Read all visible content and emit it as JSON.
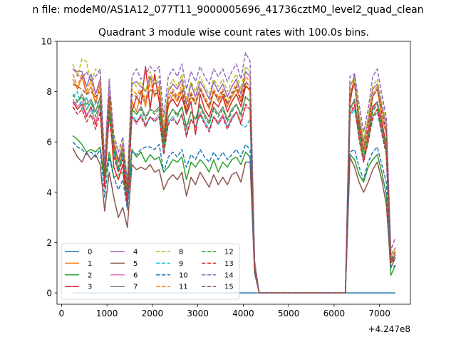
{
  "suptitle": "n file: modeM0/AS1A12_077T11_9000005696_41736cztM0_level2_quad_clean",
  "chart_data": {
    "type": "line",
    "title": "Quadrant 3 module wise count rates with 100.0s bins.",
    "xlabel": "",
    "ylabel": "",
    "offset_text": "+4.247e8",
    "xlim": [
      -100,
      7680
    ],
    "ylim": [
      -0.45,
      10
    ],
    "xticks": [
      0,
      1000,
      2000,
      3000,
      4000,
      5000,
      6000,
      7000
    ],
    "yticks": [
      0,
      2,
      4,
      6,
      8,
      10
    ],
    "grid": false,
    "legend": {
      "location": "lower-left",
      "columns": 4
    },
    "x": [
      250,
      350,
      450,
      550,
      650,
      750,
      850,
      950,
      1050,
      1150,
      1250,
      1350,
      1450,
      1550,
      1650,
      1750,
      1850,
      1950,
      2050,
      2150,
      2250,
      2350,
      2450,
      2550,
      2650,
      2750,
      2850,
      2950,
      3050,
      3150,
      3250,
      3350,
      3450,
      3550,
      3650,
      3750,
      3850,
      3950,
      4050,
      4150,
      4250,
      4350,
      4450,
      4550,
      4650,
      4750,
      4850,
      4950,
      5050,
      5150,
      5250,
      5350,
      5450,
      5550,
      5650,
      5750,
      5850,
      5950,
      6050,
      6150,
      6250,
      6350,
      6450,
      6550,
      6650,
      6750,
      6850,
      6950,
      7050,
      7150,
      7250,
      7350
    ],
    "series": [
      {
        "name": "0",
        "color": "#1f77b4",
        "dash": false,
        "values": [
          0,
          0,
          0,
          0,
          0,
          0,
          0,
          0,
          0,
          0,
          0,
          0,
          0,
          0,
          0,
          0,
          0,
          0,
          0,
          0,
          0,
          0,
          0,
          0,
          0,
          0,
          0,
          0,
          0,
          0,
          0,
          0,
          0,
          0,
          0,
          0,
          0,
          0,
          0,
          0,
          0,
          0,
          0,
          0,
          0,
          0,
          0,
          0,
          0,
          0,
          0,
          0,
          0,
          0,
          0,
          0,
          0,
          0,
          0,
          0,
          0,
          0,
          0,
          0,
          0,
          0,
          0,
          0,
          0,
          0,
          0,
          0
        ]
      },
      {
        "name": "1",
        "color": "#ff7f0e",
        "dash": false,
        "values": [
          8.5,
          8.1,
          8.6,
          7.9,
          8.2,
          7.5,
          8.3,
          4.6,
          7.2,
          5.8,
          4.9,
          5.6,
          3.9,
          7.6,
          7.2,
          8.0,
          7.4,
          8.6,
          7.8,
          8.1,
          6.2,
          7.4,
          7.9,
          7.6,
          8.0,
          7.2,
          7.8,
          7.5,
          8.1,
          7.7,
          7.3,
          8.0,
          7.6,
          7.9,
          7.4,
          7.8,
          8.1,
          7.6,
          8.3,
          8.0,
          1.1,
          0,
          0,
          0,
          0,
          0,
          0,
          0,
          0,
          0,
          0,
          0,
          0,
          0,
          0,
          0,
          0,
          0,
          0,
          0,
          0,
          7.8,
          8.3,
          6.9,
          5.6,
          6.5,
          7.8,
          8.1,
          7.0,
          6.3,
          1.4,
          1.6
        ]
      },
      {
        "name": "2",
        "color": "#2ca02c",
        "dash": false,
        "values": [
          6.25,
          6.1,
          5.9,
          5.6,
          5.7,
          5.6,
          5.8,
          4.4,
          5.6,
          4.6,
          4.7,
          4.8,
          3.5,
          5.7,
          5.4,
          5.6,
          5.2,
          5.5,
          5.3,
          5.4,
          4.8,
          5.0,
          5.3,
          5.2,
          5.4,
          4.5,
          5.2,
          5.0,
          5.3,
          5.1,
          4.8,
          5.3,
          4.8,
          5.2,
          5.0,
          5.3,
          5.4,
          5.1,
          5.6,
          5.4,
          0.9,
          0,
          0,
          0,
          0,
          0,
          0,
          0,
          0,
          0,
          0,
          0,
          0,
          0,
          0,
          0,
          0,
          0,
          0,
          0,
          0,
          5.5,
          5.3,
          4.7,
          4.4,
          5.0,
          5.3,
          5.5,
          4.8,
          3.9,
          0.7,
          1.1
        ]
      },
      {
        "name": "3",
        "color": "#d62728",
        "dash": false,
        "values": [
          7.6,
          7.3,
          7.5,
          7.0,
          7.4,
          6.7,
          7.5,
          4.2,
          7.6,
          5.0,
          4.5,
          5.1,
          3.4,
          7.2,
          7.8,
          7.5,
          9.0,
          7.3,
          8.7,
          7.6,
          5.9,
          7.5,
          7.7,
          7.4,
          7.8,
          7.1,
          7.6,
          6.3,
          7.9,
          7.3,
          7.0,
          7.6,
          7.4,
          7.8,
          7.2,
          7.6,
          7.9,
          7.4,
          8.2,
          8.1,
          1.0,
          0,
          0,
          0,
          0,
          0,
          0,
          0,
          0,
          0,
          0,
          0,
          0,
          0,
          0,
          0,
          0,
          0,
          0,
          0,
          0,
          7.5,
          8.7,
          6.6,
          5.3,
          6.3,
          7.4,
          7.6,
          6.8,
          5.9,
          1.3,
          1.5
        ]
      },
      {
        "name": "4",
        "color": "#9467bd",
        "dash": false,
        "values": [
          8.9,
          8.8,
          8.8,
          8.2,
          8.7,
          7.9,
          8.5,
          5.0,
          8.3,
          6.0,
          5.3,
          5.9,
          4.1,
          8.3,
          8.4,
          8.2,
          8.0,
          8.6,
          8.3,
          8.4,
          6.4,
          8.0,
          8.3,
          8.1,
          8.5,
          7.5,
          8.3,
          7.8,
          8.4,
          8.1,
          7.7,
          8.4,
          8.0,
          8.3,
          7.8,
          8.2,
          8.5,
          7.9,
          8.8,
          8.6,
          1.2,
          0,
          0,
          0,
          0,
          0,
          0,
          0,
          0,
          0,
          0,
          0,
          0,
          0,
          0,
          0,
          0,
          0,
          0,
          0,
          0,
          8.2,
          8.6,
          7.0,
          6.0,
          6.9,
          8.1,
          8.3,
          7.4,
          6.7,
          1.5,
          1.8
        ]
      },
      {
        "name": "5",
        "color": "#8c564b",
        "dash": false,
        "values": [
          5.75,
          5.4,
          5.2,
          5.6,
          5.3,
          5.5,
          5.1,
          3.25,
          4.8,
          3.8,
          3.0,
          3.4,
          2.6,
          5.1,
          4.9,
          5.0,
          4.9,
          5.1,
          4.8,
          4.9,
          4.1,
          4.5,
          4.7,
          4.5,
          4.8,
          3.85,
          4.6,
          4.3,
          4.8,
          4.5,
          4.2,
          4.7,
          4.3,
          4.6,
          4.3,
          4.7,
          4.8,
          4.4,
          5.2,
          5.2,
          0.8,
          0,
          0,
          0,
          0,
          0,
          0,
          0,
          0,
          0,
          0,
          0,
          0,
          0,
          0,
          0,
          0,
          0,
          0,
          0,
          0,
          5.4,
          5.0,
          4.4,
          4.0,
          4.4,
          4.9,
          5.2,
          4.5,
          3.5,
          1.0,
          1.4
        ]
      },
      {
        "name": "6",
        "color": "#e377c2",
        "dash": false,
        "values": [
          7.7,
          7.4,
          7.6,
          7.1,
          7.3,
          6.8,
          7.4,
          4.5,
          7.1,
          5.5,
          4.9,
          5.4,
          3.8,
          7.0,
          6.7,
          7.1,
          6.7,
          7.0,
          6.9,
          7.1,
          5.6,
          6.8,
          7.0,
          6.7,
          7.1,
          6.3,
          6.9,
          6.6,
          7.2,
          6.8,
          6.5,
          7.0,
          6.8,
          7.1,
          6.6,
          7.0,
          7.2,
          6.8,
          7.4,
          7.3,
          1.0,
          0,
          0,
          0,
          0,
          0,
          0,
          0,
          0,
          0,
          0,
          0,
          0,
          0,
          0,
          0,
          0,
          0,
          0,
          0,
          0,
          7.1,
          7.4,
          6.2,
          5.2,
          6.0,
          7.0,
          7.3,
          6.4,
          5.6,
          1.2,
          1.5
        ]
      },
      {
        "name": "7",
        "color": "#7f7f7f",
        "dash": false,
        "values": [
          7.5,
          7.6,
          7.9,
          7.5,
          7.7,
          7.2,
          7.8,
          4.4,
          7.5,
          5.6,
          4.8,
          5.5,
          3.9,
          7.3,
          7.1,
          7.4,
          7.0,
          7.3,
          7.2,
          7.4,
          5.7,
          7.0,
          7.3,
          7.1,
          7.4,
          6.6,
          7.2,
          6.9,
          7.5,
          7.1,
          6.8,
          7.4,
          7.1,
          7.4,
          6.9,
          7.3,
          7.5,
          7.1,
          7.8,
          7.6,
          1.0,
          0,
          0,
          0,
          0,
          0,
          0,
          0,
          0,
          0,
          0,
          0,
          0,
          0,
          0,
          0,
          0,
          0,
          0,
          0,
          0,
          7.3,
          7.7,
          6.4,
          5.4,
          6.2,
          7.3,
          7.6,
          6.6,
          5.7,
          1.2,
          1.5
        ]
      },
      {
        "name": "8",
        "color": "#bcbd22",
        "dash": true,
        "values": [
          9.1,
          8.6,
          9.3,
          9.2,
          8.3,
          8.9,
          8.7,
          5.1,
          8.3,
          6.1,
          5.6,
          6.0,
          4.4,
          8.4,
          8.2,
          8.4,
          8.0,
          8.8,
          8.3,
          8.6,
          6.6,
          8.1,
          8.5,
          8.2,
          8.7,
          7.7,
          8.4,
          8.0,
          8.6,
          8.2,
          7.9,
          8.5,
          8.2,
          8.5,
          8.0,
          8.4,
          8.7,
          8.1,
          9.0,
          8.8,
          1.2,
          0,
          0,
          0,
          0,
          0,
          0,
          0,
          0,
          0,
          0,
          0,
          0,
          0,
          0,
          0,
          0,
          0,
          0,
          0,
          0,
          8.3,
          8.5,
          7.2,
          6.1,
          7.0,
          8.2,
          8.5,
          7.6,
          6.8,
          1.5,
          1.8
        ]
      },
      {
        "name": "9",
        "color": "#17becf",
        "dash": true,
        "values": [
          7.8,
          8.0,
          7.3,
          7.8,
          7.0,
          7.7,
          7.3,
          4.7,
          7.1,
          5.6,
          4.9,
          5.4,
          3.8,
          7.1,
          6.8,
          7.1,
          6.6,
          7.0,
          6.8,
          7.0,
          5.6,
          6.8,
          7.0,
          6.7,
          7.1,
          6.3,
          6.9,
          6.6,
          7.1,
          6.8,
          6.5,
          7.0,
          6.7,
          7.0,
          6.6,
          6.9,
          7.2,
          6.7,
          6.6,
          6.9,
          1.0,
          0,
          0,
          0,
          0,
          0,
          0,
          0,
          0,
          0,
          0,
          0,
          0,
          0,
          0,
          0,
          0,
          0,
          0,
          0,
          0,
          7.0,
          7.3,
          6.2,
          5.3,
          6.0,
          6.9,
          7.2,
          6.3,
          5.5,
          1.2,
          1.4
        ]
      },
      {
        "name": "10",
        "color": "#1f77b4",
        "dash": true,
        "values": [
          6.0,
          5.8,
          5.7,
          5.5,
          5.6,
          5.4,
          5.7,
          3.8,
          5.4,
          4.6,
          4.1,
          4.5,
          3.3,
          5.6,
          5.5,
          5.7,
          5.8,
          5.8,
          5.7,
          5.9,
          4.8,
          5.4,
          5.6,
          5.4,
          5.7,
          5.0,
          5.5,
          5.3,
          5.7,
          5.4,
          5.2,
          5.6,
          5.3,
          5.6,
          5.3,
          5.5,
          5.7,
          5.4,
          5.9,
          5.7,
          0.9,
          0,
          0,
          0,
          0,
          0,
          0,
          0,
          0,
          0,
          0,
          0,
          0,
          0,
          0,
          0,
          0,
          0,
          0,
          0,
          0,
          5.6,
          5.7,
          5.0,
          4.5,
          5.2,
          5.6,
          5.8,
          5.1,
          4.4,
          1.0,
          1.1
        ]
      },
      {
        "name": "11",
        "color": "#ff7f0e",
        "dash": true,
        "values": [
          8.7,
          8.2,
          8.7,
          8.0,
          8.5,
          7.6,
          8.4,
          4.8,
          8.0,
          5.9,
          5.2,
          5.8,
          4.0,
          8.1,
          7.9,
          8.1,
          7.7,
          8.3,
          8.0,
          8.2,
          6.3,
          7.8,
          8.1,
          7.8,
          8.3,
          7.3,
          8.0,
          7.6,
          8.2,
          7.8,
          7.5,
          8.1,
          7.8,
          8.1,
          7.6,
          8.0,
          8.3,
          7.7,
          8.6,
          8.4,
          1.1,
          0,
          0,
          0,
          0,
          0,
          0,
          0,
          0,
          0,
          0,
          0,
          0,
          0,
          0,
          0,
          0,
          0,
          0,
          0,
          0,
          8.0,
          8.4,
          6.9,
          5.8,
          6.7,
          7.9,
          8.2,
          7.3,
          6.5,
          1.4,
          1.7
        ]
      },
      {
        "name": "12",
        "color": "#2ca02c",
        "dash": true,
        "values": [
          7.9,
          7.6,
          7.8,
          7.3,
          7.6,
          7.0,
          7.6,
          4.6,
          7.3,
          5.7,
          5.0,
          5.6,
          3.9,
          7.3,
          7.1,
          7.3,
          6.9,
          7.3,
          7.1,
          7.3,
          5.8,
          7.0,
          7.3,
          7.0,
          7.4,
          6.5,
          7.2,
          6.9,
          7.4,
          7.0,
          6.7,
          7.3,
          7.0,
          7.3,
          6.8,
          7.2,
          7.5,
          7.0,
          7.8,
          7.6,
          1.0,
          0,
          0,
          0,
          0,
          0,
          0,
          0,
          0,
          0,
          0,
          0,
          0,
          0,
          0,
          0,
          0,
          0,
          0,
          0,
          0,
          7.3,
          7.6,
          6.4,
          5.4,
          6.2,
          7.2,
          7.5,
          6.6,
          5.8,
          1.2,
          1.5
        ]
      },
      {
        "name": "13",
        "color": "#d62728",
        "dash": true,
        "values": [
          7.4,
          7.1,
          7.3,
          6.8,
          7.1,
          6.5,
          7.2,
          4.4,
          7.0,
          5.4,
          4.8,
          5.3,
          3.7,
          7.0,
          6.8,
          7.0,
          6.6,
          7.0,
          6.8,
          7.0,
          5.5,
          6.7,
          6.9,
          6.7,
          7.1,
          6.2,
          6.9,
          6.6,
          7.1,
          6.7,
          6.4,
          7.0,
          6.7,
          7.0,
          6.5,
          6.9,
          7.2,
          6.7,
          7.5,
          7.3,
          1.0,
          0,
          0,
          0,
          0,
          0,
          0,
          0,
          0,
          0,
          0,
          0,
          0,
          0,
          0,
          0,
          0,
          0,
          0,
          0,
          0,
          7.1,
          7.5,
          6.1,
          5.2,
          6.0,
          7.0,
          7.3,
          6.4,
          5.5,
          1.2,
          1.4
        ]
      },
      {
        "name": "14",
        "color": "#9467bd",
        "dash": true,
        "values": [
          8.9,
          8.7,
          8.5,
          8.8,
          8.4,
          8.6,
          8.9,
          5.2,
          8.5,
          6.3,
          5.6,
          6.2,
          4.4,
          8.6,
          8.9,
          8.5,
          8.7,
          9.0,
          8.8,
          9.0,
          7.0,
          8.6,
          8.9,
          8.6,
          9.1,
          8.1,
          8.8,
          8.4,
          9.0,
          8.6,
          8.3,
          8.9,
          8.6,
          8.9,
          8.4,
          8.8,
          9.1,
          8.5,
          9.55,
          9.2,
          1.3,
          0,
          0,
          0,
          0,
          0,
          0,
          0,
          0,
          0,
          0,
          0,
          0,
          0,
          0,
          0,
          0,
          0,
          0,
          0,
          0,
          8.6,
          8.7,
          7.5,
          6.4,
          7.3,
          8.6,
          8.9,
          7.9,
          7.0,
          1.7,
          2.2
        ]
      },
      {
        "name": "15",
        "color": "#8c564b",
        "dash": true,
        "values": [
          8.3,
          8.2,
          8.1,
          7.9,
          8.0,
          7.8,
          8.0,
          4.8,
          7.8,
          5.9,
          5.2,
          5.7,
          4.1,
          7.9,
          7.8,
          8.0,
          7.6,
          8.1,
          7.9,
          8.0,
          6.2,
          7.7,
          8.0,
          7.7,
          8.1,
          7.2,
          7.9,
          7.5,
          8.1,
          7.7,
          7.4,
          8.0,
          7.7,
          8.0,
          7.5,
          7.9,
          8.2,
          7.6,
          8.4,
          8.2,
          1.1,
          0,
          0,
          0,
          0,
          0,
          0,
          0,
          0,
          0,
          0,
          0,
          0,
          0,
          0,
          0,
          0,
          0,
          0,
          0,
          0,
          7.9,
          8.3,
          6.8,
          5.7,
          6.6,
          7.8,
          8.1,
          7.2,
          6.4,
          1.3,
          1.6
        ]
      }
    ]
  }
}
